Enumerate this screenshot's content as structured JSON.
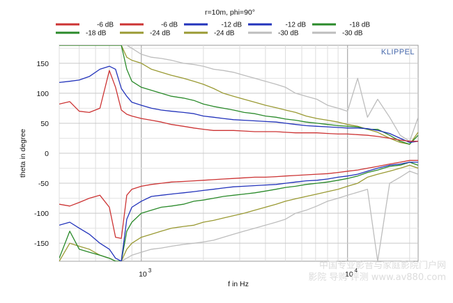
{
  "chart_data": {
    "type": "line",
    "title": "r=10m, phi=90°",
    "xlabel": "f in Hz",
    "ylabel": "theta in degree",
    "brand": "KLIPPEL",
    "x_scale": "log",
    "xlim": [
      400,
      22000
    ],
    "ylim": [
      -180,
      180
    ],
    "y_ticks": [
      150,
      100,
      50,
      0,
      -50,
      -100,
      -150
    ],
    "x_ticks": [
      {
        "value": 1000,
        "base": "10",
        "exp": "3"
      },
      {
        "value": 10000,
        "base": "10",
        "exp": "4"
      }
    ],
    "grid": true,
    "legend_position": "top",
    "legend": [
      {
        "label": "-6 dB",
        "color": "#cc3333"
      },
      {
        "label": "-6 dB",
        "color": "#cc3333"
      },
      {
        "label": "-12 dB",
        "color": "#2233bb"
      },
      {
        "label": "-12 dB",
        "color": "#2233bb"
      },
      {
        "label": "-18 dB",
        "color": "#2a8a2a"
      },
      {
        "label": "-18 dB",
        "color": "#2a8a2a"
      },
      {
        "label": "-24 dB",
        "color": "#9a9a33"
      },
      {
        "label": "-24 dB",
        "color": "#9a9a33"
      },
      {
        "label": "-30 dB",
        "color": "#bdbdbd"
      },
      {
        "label": "-30 dB",
        "color": "#bdbdbd"
      }
    ],
    "x": [
      400,
      450,
      500,
      560,
      630,
      700,
      750,
      800,
      850,
      900,
      1000,
      1120,
      1250,
      1400,
      1600,
      1800,
      2000,
      2240,
      2500,
      2800,
      3150,
      3550,
      4000,
      4500,
      5000,
      5600,
      6300,
      7100,
      8000,
      9000,
      10000,
      11200,
      12500,
      14000,
      16000,
      18000,
      20000,
      22000
    ],
    "series": [
      {
        "color": "#cc3333",
        "values": [
          82,
          86,
          70,
          68,
          75,
          138,
          110,
          72,
          65,
          62,
          58,
          55,
          52,
          48,
          45,
          42,
          40,
          38,
          38,
          38,
          37,
          36,
          36,
          36,
          35,
          34,
          34,
          34,
          33,
          32,
          32,
          31,
          30,
          28,
          25,
          22,
          20,
          20
        ]
      },
      {
        "color": "#2233bb",
        "values": [
          118,
          120,
          122,
          128,
          140,
          145,
          140,
          108,
          95,
          85,
          80,
          75,
          72,
          70,
          68,
          66,
          62,
          60,
          58,
          56,
          55,
          54,
          53,
          52,
          50,
          48,
          46,
          45,
          44,
          43,
          42,
          42,
          41,
          38,
          33,
          25,
          18,
          20
        ]
      },
      {
        "color": "#2a8a2a",
        "values": [
          180,
          180,
          180,
          180,
          180,
          180,
          180,
          180,
          140,
          120,
          110,
          105,
          100,
          95,
          92,
          88,
          82,
          78,
          75,
          72,
          68,
          66,
          62,
          60,
          57,
          55,
          52,
          50,
          48,
          46,
          45,
          44,
          40,
          40,
          30,
          20,
          15,
          30
        ]
      },
      {
        "color": "#9a9a33",
        "values": [
          180,
          180,
          180,
          180,
          180,
          180,
          180,
          180,
          160,
          155,
          150,
          140,
          135,
          130,
          125,
          120,
          115,
          108,
          100,
          95,
          90,
          85,
          80,
          76,
          72,
          68,
          62,
          58,
          55,
          52,
          48,
          45,
          40,
          35,
          25,
          18,
          15,
          35
        ]
      },
      {
        "color": "#bdbdbd",
        "values": [
          180,
          180,
          180,
          180,
          180,
          180,
          180,
          180,
          180,
          175,
          165,
          160,
          158,
          155,
          150,
          148,
          145,
          140,
          138,
          135,
          130,
          125,
          120,
          115,
          110,
          100,
          95,
          90,
          80,
          75,
          70,
          125,
          60,
          90,
          60,
          30,
          20,
          60
        ]
      },
      {
        "color": "#cc3333",
        "values": [
          -85,
          -88,
          -82,
          -75,
          -70,
          -90,
          -140,
          -142,
          -70,
          -60,
          -55,
          -52,
          -50,
          -48,
          -47,
          -46,
          -45,
          -44,
          -43,
          -42,
          -41,
          -40,
          -40,
          -39,
          -38,
          -37,
          -36,
          -35,
          -34,
          -32,
          -30,
          -28,
          -25,
          -22,
          -18,
          -15,
          -12,
          -12
        ]
      },
      {
        "color": "#2233bb",
        "values": [
          -120,
          -115,
          -125,
          -135,
          -150,
          -160,
          -175,
          -180,
          -110,
          -90,
          -80,
          -72,
          -70,
          -68,
          -66,
          -64,
          -62,
          -60,
          -58,
          -56,
          -55,
          -54,
          -53,
          -52,
          -50,
          -48,
          -46,
          -45,
          -43,
          -40,
          -38,
          -35,
          -30,
          -25,
          -20,
          -18,
          -15,
          -15
        ]
      },
      {
        "color": "#2a8a2a",
        "values": [
          -175,
          -130,
          -160,
          -165,
          -170,
          -175,
          -180,
          -180,
          -130,
          -115,
          -100,
          -95,
          -90,
          -88,
          -85,
          -80,
          -78,
          -75,
          -72,
          -70,
          -68,
          -66,
          -63,
          -60,
          -57,
          -55,
          -52,
          -50,
          -48,
          -45,
          -42,
          -38,
          -32,
          -28,
          -22,
          -20,
          -15,
          -20
        ]
      },
      {
        "color": "#9a9a33",
        "values": [
          -180,
          -150,
          -155,
          -160,
          -170,
          -175,
          -180,
          -180,
          -160,
          -150,
          -140,
          -135,
          -130,
          -125,
          -122,
          -120,
          -115,
          -112,
          -108,
          -104,
          -100,
          -95,
          -90,
          -85,
          -80,
          -76,
          -72,
          -68,
          -64,
          -60,
          -55,
          -50,
          -40,
          -35,
          -30,
          -25,
          -20,
          -25
        ]
      },
      {
        "color": "#bdbdbd",
        "values": [
          -180,
          -180,
          -180,
          -180,
          -180,
          -180,
          -180,
          -180,
          -175,
          -170,
          -165,
          -160,
          -158,
          -155,
          -152,
          -150,
          -148,
          -145,
          -140,
          -135,
          -130,
          -125,
          -120,
          -115,
          -110,
          -100,
          -95,
          -88,
          -80,
          -75,
          -70,
          -65,
          -60,
          -180,
          -50,
          -40,
          -30,
          -35
        ]
      }
    ],
    "watermark": {
      "line1": "中国专业影音与家庭影院门户网",
      "line2": "影院 导购 评测 www.av880.com"
    }
  }
}
